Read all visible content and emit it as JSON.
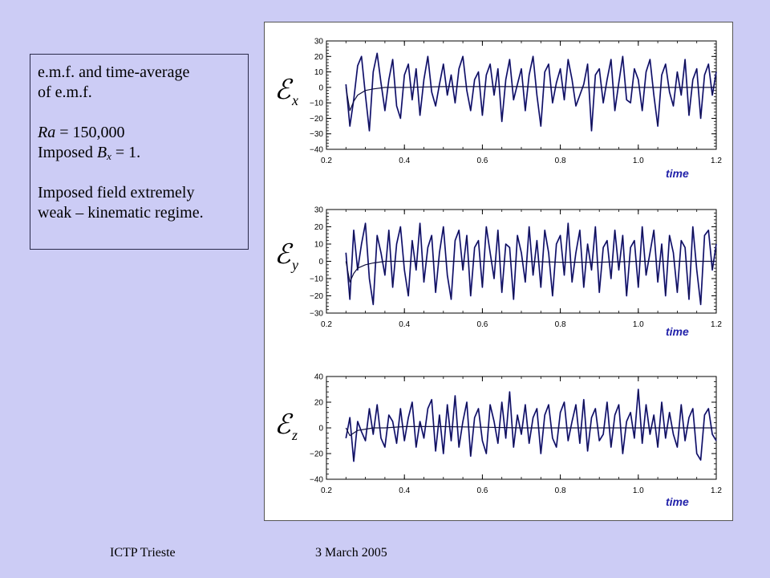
{
  "description_box": {
    "line1": "e.m.f. and time-average",
    "line2": "of e.m.f.",
    "ra_symbol": "Ra",
    "ra_value": " = 150,000",
    "imposed_prefix": "Imposed ",
    "imposed_symbol": "B",
    "imposed_sub": "x",
    "imposed_value": " = 1.",
    "line5": "Imposed field extremely",
    "line6": "weak – kinematic regime."
  },
  "footer": {
    "left": "ICTP Trieste",
    "right": "3 March 2005"
  },
  "colors": {
    "background": "#ccccf5",
    "panel": "#ffffff",
    "signal": "#101040",
    "signal_shadow": "#3333cc",
    "time_label": "#2222aa"
  },
  "chart_data": [
    {
      "type": "line",
      "ylabel_symbol": "ℰ",
      "ylabel_sub": "x",
      "xlabel": "time",
      "xlim": [
        0.2,
        1.2
      ],
      "ylim": [
        -40,
        30
      ],
      "xticks": [
        0.2,
        0.4,
        0.6,
        0.8,
        1.0,
        1.2
      ],
      "xtick_labels": [
        "0.2",
        "0.4",
        "0.6",
        "0.8",
        "1.0",
        "1.2"
      ],
      "yticks": [
        30,
        20,
        10,
        0,
        -10,
        -20,
        -30,
        -40
      ],
      "ytick_labels": [
        "30",
        "20",
        "10",
        "0",
        "−10",
        "−20",
        "−30",
        "−40"
      ],
      "grid": false,
      "series": [
        {
          "role": "emf",
          "x": [
            0.25,
            0.26,
            0.27,
            0.28,
            0.29,
            0.3,
            0.31,
            0.32,
            0.33,
            0.34,
            0.35,
            0.36,
            0.37,
            0.38,
            0.39,
            0.4,
            0.41,
            0.42,
            0.43,
            0.44,
            0.45,
            0.46,
            0.47,
            0.48,
            0.49,
            0.5,
            0.51,
            0.52,
            0.53,
            0.54,
            0.55,
            0.56,
            0.57,
            0.58,
            0.59,
            0.6,
            0.61,
            0.62,
            0.63,
            0.64,
            0.65,
            0.66,
            0.67,
            0.68,
            0.69,
            0.7,
            0.71,
            0.72,
            0.73,
            0.74,
            0.75,
            0.76,
            0.77,
            0.78,
            0.79,
            0.8,
            0.81,
            0.82,
            0.83,
            0.84,
            0.85,
            0.86,
            0.87,
            0.88,
            0.89,
            0.9,
            0.91,
            0.92,
            0.93,
            0.94,
            0.95,
            0.96,
            0.97,
            0.98,
            0.99,
            1.0,
            1.01,
            1.02,
            1.03,
            1.04,
            1.05,
            1.06,
            1.07,
            1.08,
            1.09,
            1.1,
            1.11,
            1.12,
            1.13,
            1.14,
            1.15,
            1.16,
            1.17,
            1.18,
            1.19,
            1.2
          ],
          "values": [
            2,
            -25,
            -8,
            14,
            20,
            -5,
            -28,
            10,
            22,
            3,
            -15,
            5,
            18,
            -12,
            -20,
            8,
            15,
            -8,
            12,
            -18,
            5,
            20,
            -3,
            -12,
            2,
            15,
            -5,
            8,
            -10,
            12,
            20,
            -2,
            -15,
            5,
            10,
            -18,
            8,
            15,
            -5,
            12,
            -22,
            5,
            18,
            -8,
            2,
            12,
            -15,
            8,
            20,
            -5,
            -25,
            10,
            15,
            -10,
            3,
            12,
            -8,
            18,
            5,
            -12,
            -5,
            2,
            15,
            -28,
            8,
            12,
            -10,
            5,
            18,
            -15,
            3,
            20,
            -8,
            -10,
            12,
            5,
            -15,
            10,
            18,
            -5,
            -25,
            8,
            15,
            -3,
            -12,
            10,
            -5,
            18,
            -18,
            5,
            12,
            -20,
            8,
            15,
            -5,
            10
          ]
        },
        {
          "role": "time-average",
          "x": [
            0.25,
            0.26,
            0.27,
            0.28,
            0.3,
            0.32,
            0.35,
            0.4,
            0.5,
            0.6,
            0.7,
            0.8,
            0.9,
            1.0,
            1.1,
            1.2
          ],
          "values": [
            0,
            -15,
            -9,
            -5,
            -2,
            -1,
            0,
            0,
            0.5,
            0.5,
            0.5,
            0,
            0,
            0,
            0,
            0
          ]
        }
      ]
    },
    {
      "type": "line",
      "ylabel_symbol": "ℰ",
      "ylabel_sub": "y",
      "xlabel": "time",
      "xlim": [
        0.2,
        1.2
      ],
      "ylim": [
        -30,
        30
      ],
      "xticks": [
        0.2,
        0.4,
        0.6,
        0.8,
        1.0,
        1.2
      ],
      "xtick_labels": [
        "0.2",
        "0.4",
        "0.6",
        "0.8",
        "1.0",
        "1.2"
      ],
      "yticks": [
        30,
        20,
        10,
        0,
        -10,
        -20,
        -30
      ],
      "ytick_labels": [
        "30",
        "20",
        "10",
        "0",
        "−10",
        "−20",
        "−30"
      ],
      "grid": false,
      "series": [
        {
          "role": "emf",
          "x": [
            0.25,
            0.26,
            0.27,
            0.28,
            0.29,
            0.3,
            0.31,
            0.32,
            0.33,
            0.34,
            0.35,
            0.36,
            0.37,
            0.38,
            0.39,
            0.4,
            0.41,
            0.42,
            0.43,
            0.44,
            0.45,
            0.46,
            0.47,
            0.48,
            0.49,
            0.5,
            0.51,
            0.52,
            0.53,
            0.54,
            0.55,
            0.56,
            0.57,
            0.58,
            0.59,
            0.6,
            0.61,
            0.62,
            0.63,
            0.64,
            0.65,
            0.66,
            0.67,
            0.68,
            0.69,
            0.7,
            0.71,
            0.72,
            0.73,
            0.74,
            0.75,
            0.76,
            0.77,
            0.78,
            0.79,
            0.8,
            0.81,
            0.82,
            0.83,
            0.84,
            0.85,
            0.86,
            0.87,
            0.88,
            0.89,
            0.9,
            0.91,
            0.92,
            0.93,
            0.94,
            0.95,
            0.96,
            0.97,
            0.98,
            0.99,
            1.0,
            1.01,
            1.02,
            1.03,
            1.04,
            1.05,
            1.06,
            1.07,
            1.08,
            1.09,
            1.1,
            1.11,
            1.12,
            1.13,
            1.14,
            1.15,
            1.16,
            1.17,
            1.18,
            1.19,
            1.2
          ],
          "values": [
            5,
            -22,
            18,
            -5,
            10,
            22,
            -10,
            -25,
            15,
            5,
            -8,
            18,
            -15,
            10,
            20,
            -5,
            -20,
            12,
            -5,
            22,
            -12,
            8,
            15,
            -18,
            5,
            20,
            -8,
            -22,
            12,
            18,
            -5,
            15,
            -20,
            8,
            12,
            -15,
            20,
            5,
            -10,
            18,
            -18,
            10,
            8,
            -22,
            15,
            5,
            -12,
            20,
            -8,
            12,
            -15,
            18,
            5,
            -20,
            10,
            15,
            -8,
            22,
            -12,
            5,
            18,
            -15,
            10,
            -5,
            20,
            -18,
            8,
            12,
            -10,
            18,
            -5,
            15,
            -20,
            8,
            12,
            -15,
            20,
            -8,
            5,
            18,
            -12,
            10,
            -20,
            15,
            5,
            -18,
            12,
            8,
            -22,
            20,
            -5,
            -25,
            15,
            18,
            -5,
            10
          ]
        },
        {
          "role": "time-average",
          "x": [
            0.25,
            0.26,
            0.27,
            0.28,
            0.3,
            0.32,
            0.35,
            0.4,
            0.5,
            0.6,
            0.7,
            0.8,
            0.9,
            1.0,
            1.1,
            1.2
          ],
          "values": [
            0,
            -12,
            -7,
            -4,
            -2,
            -1,
            0,
            0,
            0,
            0,
            0,
            -0.5,
            -0.5,
            0,
            0,
            0
          ]
        }
      ]
    },
    {
      "type": "line",
      "ylabel_symbol": "ℰ",
      "ylabel_sub": "z",
      "xlabel": "time",
      "xlim": [
        0.2,
        1.2
      ],
      "ylim": [
        -40,
        40
      ],
      "xticks": [
        0.2,
        0.4,
        0.6,
        0.8,
        1.0,
        1.2
      ],
      "xtick_labels": [
        "0.2",
        "0.4",
        "0.6",
        "0.8",
        "1.0",
        "1.2"
      ],
      "yticks": [
        40,
        20,
        0,
        -20,
        -40
      ],
      "ytick_labels": [
        "40",
        "20",
        "0",
        "−20",
        "−40"
      ],
      "grid": false,
      "series": [
        {
          "role": "emf",
          "x": [
            0.25,
            0.26,
            0.27,
            0.28,
            0.29,
            0.3,
            0.31,
            0.32,
            0.33,
            0.34,
            0.35,
            0.36,
            0.37,
            0.38,
            0.39,
            0.4,
            0.41,
            0.42,
            0.43,
            0.44,
            0.45,
            0.46,
            0.47,
            0.48,
            0.49,
            0.5,
            0.51,
            0.52,
            0.53,
            0.54,
            0.55,
            0.56,
            0.57,
            0.58,
            0.59,
            0.6,
            0.61,
            0.62,
            0.63,
            0.64,
            0.65,
            0.66,
            0.67,
            0.68,
            0.69,
            0.7,
            0.71,
            0.72,
            0.73,
            0.74,
            0.75,
            0.76,
            0.77,
            0.78,
            0.79,
            0.8,
            0.81,
            0.82,
            0.83,
            0.84,
            0.85,
            0.86,
            0.87,
            0.88,
            0.89,
            0.9,
            0.91,
            0.92,
            0.93,
            0.94,
            0.95,
            0.96,
            0.97,
            0.98,
            0.99,
            1.0,
            1.01,
            1.02,
            1.03,
            1.04,
            1.05,
            1.06,
            1.07,
            1.08,
            1.09,
            1.1,
            1.11,
            1.12,
            1.13,
            1.14,
            1.15,
            1.16,
            1.17,
            1.18,
            1.19,
            1.2
          ],
          "values": [
            -8,
            8,
            -26,
            5,
            -3,
            -10,
            15,
            -5,
            18,
            -8,
            -15,
            10,
            5,
            -12,
            15,
            -10,
            8,
            20,
            -15,
            5,
            -8,
            15,
            22,
            -18,
            10,
            -20,
            18,
            -10,
            25,
            -15,
            5,
            20,
            -22,
            8,
            15,
            -10,
            -20,
            18,
            5,
            -12,
            20,
            -8,
            28,
            -15,
            10,
            -5,
            18,
            -12,
            8,
            15,
            -20,
            10,
            18,
            -8,
            -15,
            12,
            20,
            -10,
            5,
            18,
            -12,
            22,
            -18,
            8,
            15,
            -10,
            -5,
            20,
            -15,
            10,
            18,
            -20,
            5,
            12,
            -8,
            30,
            -12,
            18,
            -5,
            10,
            -15,
            20,
            -8,
            12,
            -5,
            -15,
            18,
            -10,
            8,
            15,
            -20,
            -25,
            10,
            15,
            -5,
            -10
          ]
        },
        {
          "role": "time-average",
          "x": [
            0.25,
            0.26,
            0.27,
            0.28,
            0.3,
            0.32,
            0.35,
            0.4,
            0.5,
            0.6,
            0.7,
            0.8,
            0.9,
            1.0,
            1.1,
            1.2
          ],
          "values": [
            0,
            -6,
            -4,
            -2,
            -1,
            0,
            0,
            1,
            1,
            0.5,
            0,
            0,
            0,
            0,
            0,
            0
          ]
        }
      ]
    }
  ]
}
